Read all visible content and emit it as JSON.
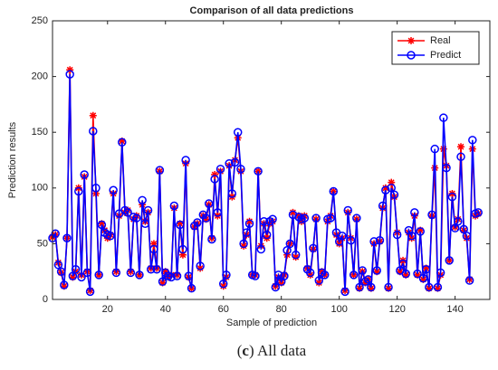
{
  "chart_data": {
    "type": "line",
    "title": "Comparison of all data predictions",
    "xlabel": "Sample of prediction",
    "ylabel": "Prediction results",
    "caption": [
      "(",
      "c",
      ") All data"
    ],
    "x": [
      1,
      2,
      3,
      4,
      5,
      6,
      7,
      8,
      9,
      10,
      11,
      12,
      13,
      14,
      15,
      16,
      17,
      18,
      19,
      20,
      21,
      22,
      23,
      24,
      25,
      26,
      27,
      28,
      29,
      30,
      31,
      32,
      33,
      34,
      35,
      36,
      37,
      38,
      39,
      40,
      41,
      42,
      43,
      44,
      45,
      46,
      47,
      48,
      49,
      50,
      51,
      52,
      53,
      54,
      55,
      56,
      57,
      58,
      59,
      60,
      61,
      62,
      63,
      64,
      65,
      66,
      67,
      68,
      69,
      70,
      71,
      72,
      73,
      74,
      75,
      76,
      77,
      78,
      79,
      80,
      81,
      82,
      83,
      84,
      85,
      86,
      87,
      88,
      89,
      90,
      91,
      92,
      93,
      94,
      95,
      96,
      97,
      98,
      99,
      100,
      101,
      102,
      103,
      104,
      105,
      106,
      107,
      108,
      109,
      110,
      111,
      112,
      113,
      114,
      115,
      116,
      117,
      118,
      119,
      120,
      121,
      122,
      123,
      124,
      125,
      126,
      127,
      128,
      129,
      130,
      131,
      132,
      133,
      134,
      135,
      136,
      137,
      138,
      139,
      140,
      141,
      142,
      143,
      144,
      145,
      146,
      147,
      148
    ],
    "series": [
      {
        "name": "Real",
        "color": "#ff0000",
        "marker": "asterisk",
        "values": [
          56,
          58,
          33,
          24,
          12,
          55,
          206,
          20,
          25,
          100,
          22,
          110,
          25,
          8,
          165,
          95,
          22,
          68,
          62,
          55,
          58,
          95,
          25,
          75,
          142,
          78,
          80,
          25,
          72,
          75,
          22,
          85,
          70,
          78,
          28,
          50,
          28,
          115,
          15,
          25,
          20,
          22,
          82,
          22,
          68,
          40,
          122,
          20,
          10,
          65,
          68,
          28,
          75,
          72,
          85,
          55,
          112,
          75,
          115,
          12,
          20,
          120,
          92,
          125,
          145,
          115,
          48,
          58,
          70,
          22,
          22,
          115,
          48,
          68,
          55,
          68,
          70,
          12,
          20,
          15,
          22,
          40,
          50,
          78,
          38,
          75,
          70,
          75,
          28,
          22,
          45,
          72,
          15,
          25,
          22,
          70,
          75,
          97,
          58,
          50,
          55,
          8,
          78,
          55,
          22,
          72,
          10,
          25,
          15,
          18,
          10,
          50,
          25,
          52,
          82,
          100,
          10,
          105,
          92,
          60,
          25,
          35,
          22,
          60,
          55,
          75,
          22,
          62,
          18,
          28,
          10,
          75,
          118,
          10,
          22,
          135,
          120,
          35,
          95,
          65,
          72,
          137,
          62,
          55,
          18,
          135,
          75,
          77
        ]
      },
      {
        "name": "Predict",
        "color": "#0000ff",
        "marker": "circle",
        "values": [
          55,
          59,
          31,
          25,
          13,
          55,
          202,
          21,
          27,
          97,
          20,
          112,
          24,
          7,
          151,
          100,
          22,
          67,
          60,
          58,
          57,
          98,
          24,
          77,
          141,
          80,
          78,
          24,
          74,
          73,
          22,
          89,
          68,
          80,
          27,
          45,
          27,
          116,
          16,
          24,
          21,
          20,
          84,
          21,
          67,
          45,
          125,
          21,
          10,
          66,
          69,
          30,
          76,
          73,
          86,
          54,
          108,
          78,
          117,
          14,
          22,
          122,
          95,
          123,
          150,
          117,
          50,
          60,
          68,
          22,
          21,
          115,
          45,
          70,
          58,
          70,
          72,
          11,
          22,
          16,
          21,
          44,
          50,
          76,
          40,
          74,
          72,
          73,
          27,
          24,
          46,
          73,
          17,
          24,
          22,
          72,
          73,
          97,
          60,
          52,
          57,
          7,
          80,
          53,
          22,
          73,
          11,
          26,
          16,
          18,
          11,
          52,
          26,
          53,
          84,
          98,
          11,
          100,
          94,
          58,
          26,
          32,
          23,
          62,
          57,
          78,
          23,
          61,
          19,
          27,
          11,
          76,
          135,
          11,
          24,
          163,
          118,
          35,
          92,
          64,
          70,
          128,
          63,
          57,
          17,
          143,
          77,
          78
        ]
      }
    ],
    "xlim": [
      1,
      152
    ],
    "xticks": [
      20,
      40,
      60,
      80,
      100,
      120,
      140
    ],
    "ylim": [
      0,
      250
    ],
    "yticks": [
      0,
      50,
      100,
      150,
      200,
      250
    ],
    "legend": "upper right",
    "grid": false
  }
}
